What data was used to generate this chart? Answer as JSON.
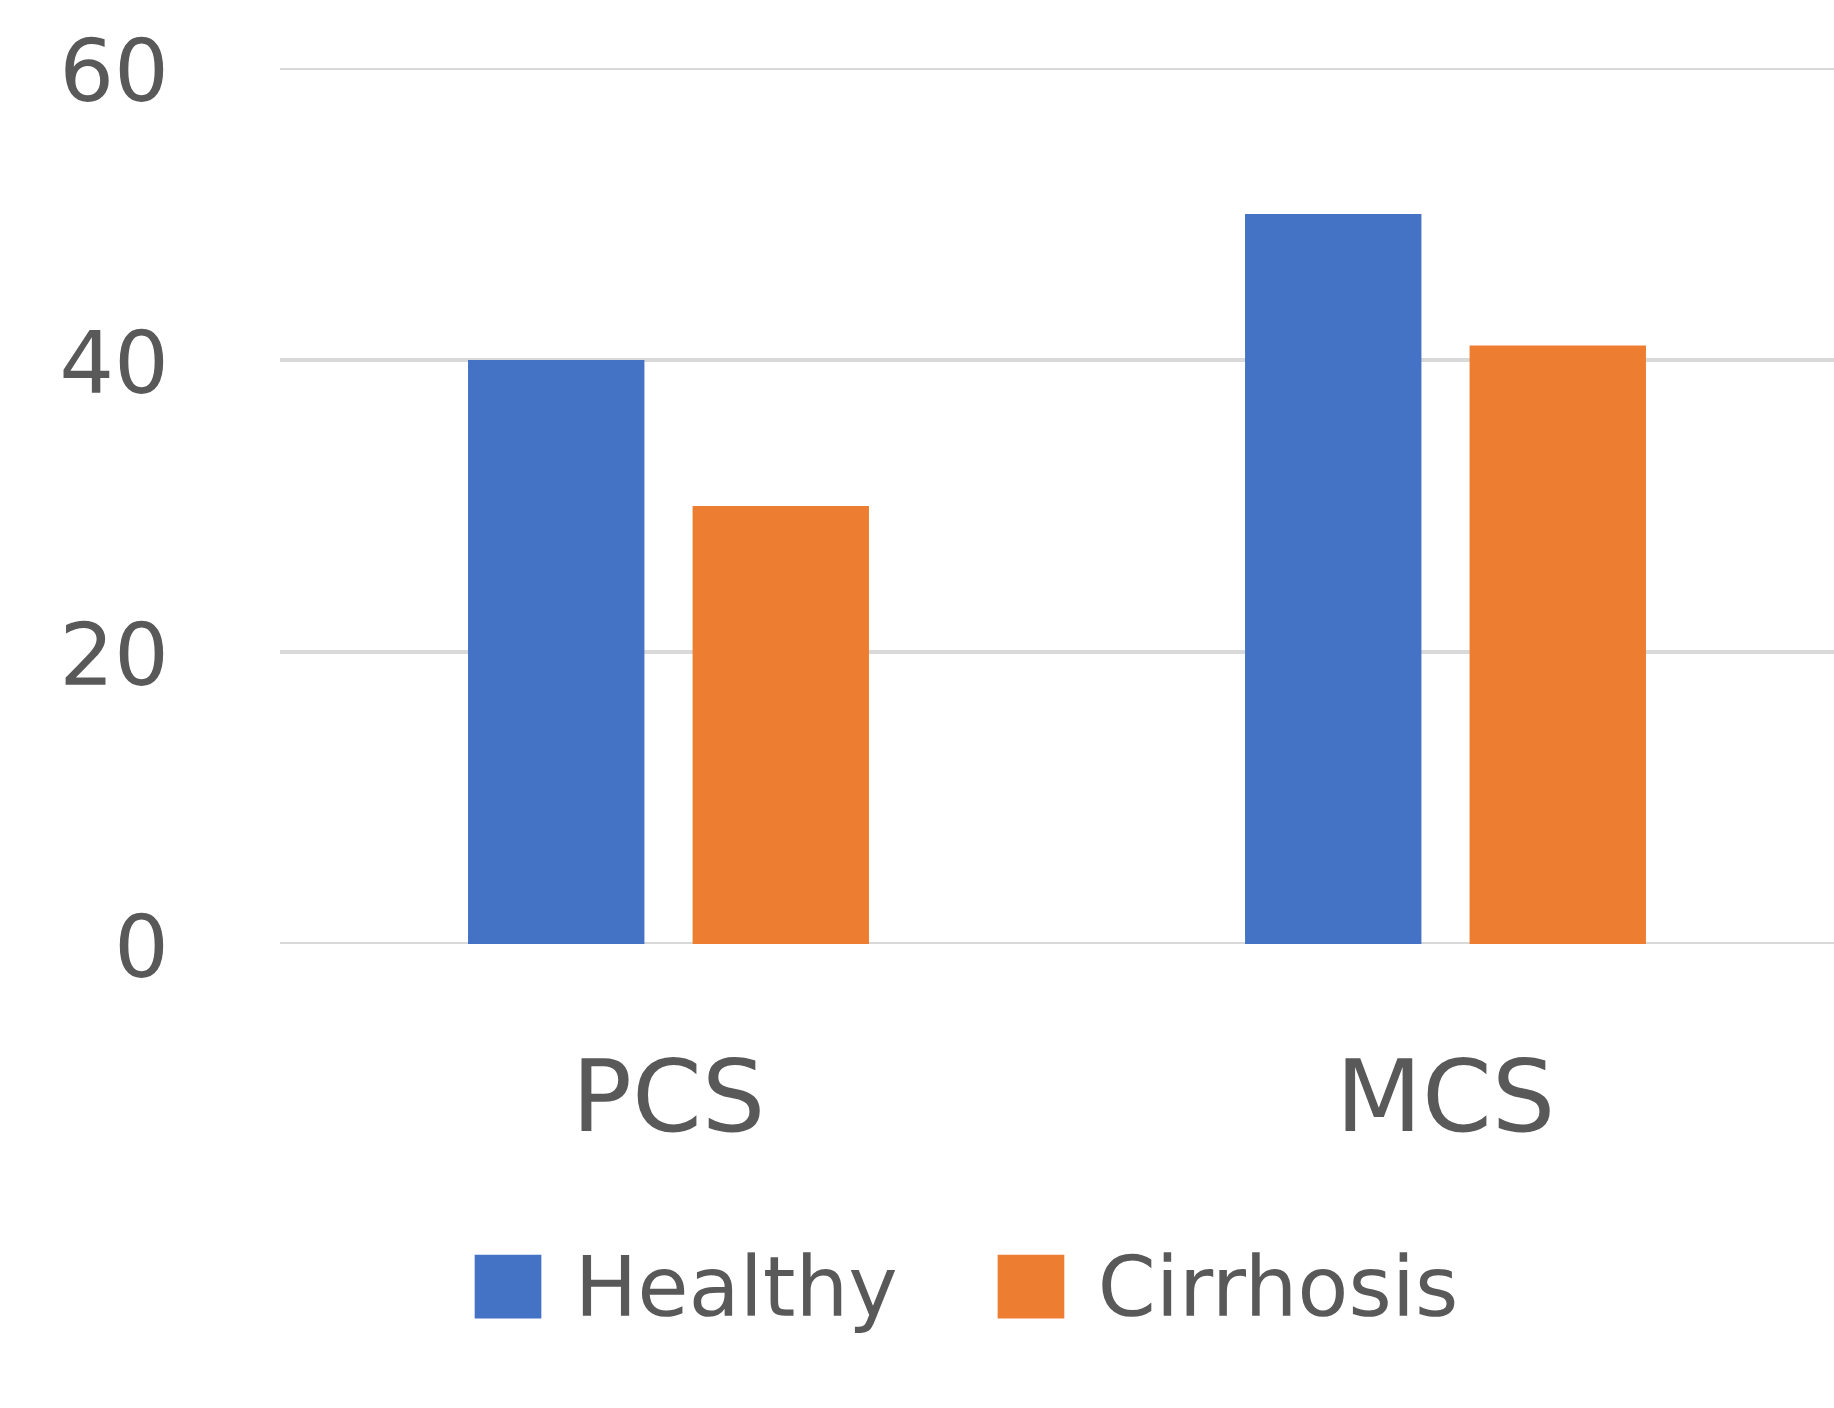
{
  "chart_data": {
    "type": "bar",
    "categories": [
      "PCS",
      "MCS"
    ],
    "series": [
      {
        "name": "Healthy",
        "color": "#4472c4",
        "values": [
          40,
          50
        ]
      },
      {
        "name": "Cirrhosis",
        "color": "#ed7d31",
        "values": [
          30,
          41
        ]
      }
    ],
    "ylim": [
      0,
      60
    ],
    "yticks": [
      0,
      20,
      40,
      60
    ],
    "grid": "y",
    "legend": "bottom"
  }
}
